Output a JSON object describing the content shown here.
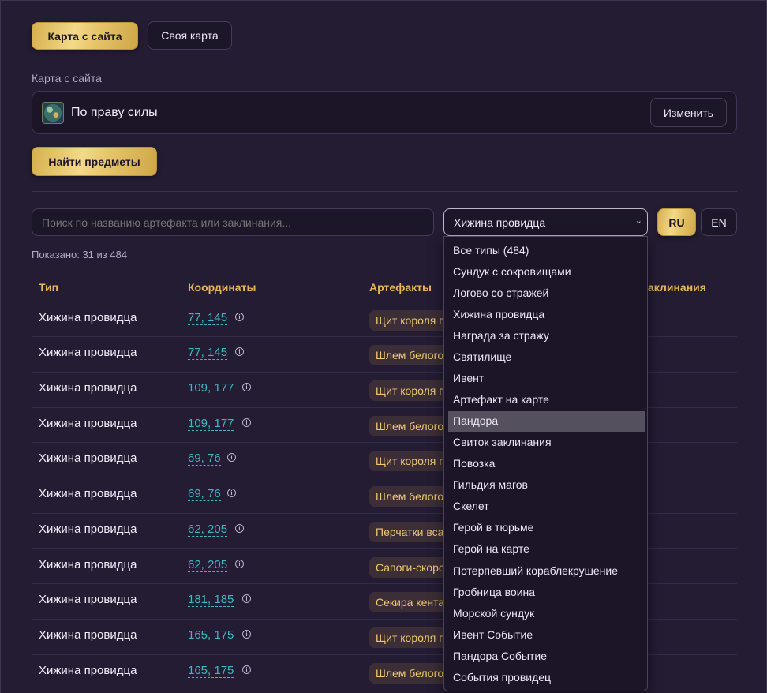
{
  "tabs": {
    "site_map": "Карта с сайта",
    "own_map": "Своя карта"
  },
  "map_section": {
    "label": "Карта с сайта",
    "map_name": "По праву силы",
    "change_button": "Изменить"
  },
  "find_button": "Найти предметы",
  "search": {
    "placeholder": "Поиск по названию артефакта или заклинания..."
  },
  "filter": {
    "selected": "Хижина провидца"
  },
  "lang": {
    "ru": "RU",
    "en": "EN"
  },
  "count_text": "Показано: 31 из 484",
  "table": {
    "headers": {
      "type": "Тип",
      "coords": "Координаты",
      "artifacts": "Артефакты",
      "spells": "аклинания"
    },
    "rows": [
      {
        "type": "Хижина провидца",
        "coords": "77, 145",
        "artifact": "Щит короля г"
      },
      {
        "type": "Хижина провидца",
        "coords": "77, 145",
        "artifact": "Шлем белого"
      },
      {
        "type": "Хижина провидца",
        "coords": "109, 177",
        "artifact": "Щит короля г"
      },
      {
        "type": "Хижина провидца",
        "coords": "109, 177",
        "artifact": "Шлем белого"
      },
      {
        "type": "Хижина провидца",
        "coords": "69, 76",
        "artifact": "Щит короля г"
      },
      {
        "type": "Хижина провидца",
        "coords": "69, 76",
        "artifact": "Шлем белого"
      },
      {
        "type": "Хижина провидца",
        "coords": "62, 205",
        "artifact": "Перчатки вса"
      },
      {
        "type": "Хижина провидца",
        "coords": "62, 205",
        "artifact": "Сапоги-скоро"
      },
      {
        "type": "Хижина провидца",
        "coords": "181, 185",
        "artifact": "Секира кента"
      },
      {
        "type": "Хижина провидца",
        "coords": "165, 175",
        "artifact": "Щит короля г"
      },
      {
        "type": "Хижина провидца",
        "coords": "165, 175",
        "artifact": "Шлем белого"
      }
    ]
  },
  "dropdown": {
    "options": [
      "Все типы (484)",
      "Сундук с сокровищами",
      "Логово со стражей",
      "Хижина провидца",
      "Награда за стражу",
      "Святилище",
      "Ивент",
      "Артефакт на карте",
      "Пандора",
      "Свиток заклинания",
      "Повозка",
      "Гильдия магов",
      "Скелет",
      "Герой в тюрьме",
      "Герой на карте",
      "Потерпевший кораблекрушение",
      "Гробница воина",
      "Морской сундук",
      "Ивент Событие",
      "Пандора Событие",
      "События провидец"
    ],
    "highlighted": "Пандора"
  },
  "colors": {
    "gold": "#e7c56b",
    "accent_header": "#e8b654",
    "coord_link": "#3fb8c3",
    "background": "#231c33"
  },
  "icons": {
    "info": "info-circle-icon",
    "chevron": "chevron-down-icon",
    "map": "map-thumbnail-icon"
  }
}
